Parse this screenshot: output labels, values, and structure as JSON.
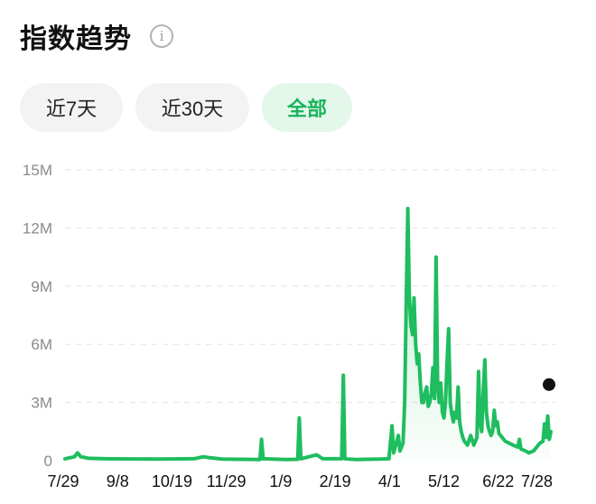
{
  "header": {
    "title": "指数趋势",
    "info_icon": "info-icon"
  },
  "tabs": [
    {
      "label": "近7天",
      "selected": false
    },
    {
      "label": "近30天",
      "selected": false
    },
    {
      "label": "全部",
      "selected": true
    }
  ],
  "colors": {
    "line": "#1fbd5f",
    "active_tab_bg": "#e3f7ea",
    "active_tab_text": "#19b35a",
    "end_dot": "#111111"
  },
  "chart_data": {
    "type": "area",
    "title": "",
    "xlabel": "",
    "ylabel": "",
    "ylim": [
      0,
      15000000
    ],
    "y_ticks": [
      0,
      3000000,
      6000000,
      9000000,
      12000000,
      15000000
    ],
    "y_tick_labels": [
      "0",
      "3M",
      "6M",
      "9M",
      "12M",
      "15M"
    ],
    "x_tick_labels": [
      "7/29",
      "9/8",
      "10/19",
      "11/29",
      "1/9",
      "2/19",
      "4/1",
      "5/12",
      "6/22",
      "7/28"
    ],
    "grid": "horizontal dashed",
    "series": [
      {
        "points": [
          [
            0,
            100000
          ],
          [
            3,
            150000
          ],
          [
            6,
            200000
          ],
          [
            8,
            400000
          ],
          [
            10,
            200000
          ],
          [
            15,
            120000
          ],
          [
            25,
            100000
          ],
          [
            41,
            90000
          ],
          [
            60,
            80000
          ],
          [
            82,
            100000
          ],
          [
            88,
            200000
          ],
          [
            92,
            150000
          ],
          [
            100,
            80000
          ],
          [
            124,
            60000
          ],
          [
            125,
            1100000
          ],
          [
            126,
            100000
          ],
          [
            140,
            60000
          ],
          [
            148,
            70000
          ],
          [
            149,
            2200000
          ],
          [
            150,
            100000
          ],
          [
            160,
            300000
          ],
          [
            164,
            100000
          ],
          [
            176,
            100000
          ],
          [
            177,
            4400000
          ],
          [
            178,
            100000
          ],
          [
            185,
            60000
          ],
          [
            200,
            80000
          ],
          [
            206,
            100000
          ],
          [
            208,
            1800000
          ],
          [
            209,
            400000
          ],
          [
            212,
            1300000
          ],
          [
            213,
            500000
          ],
          [
            215,
            900000
          ],
          [
            216,
            3000000
          ],
          [
            217,
            8000000
          ],
          [
            218,
            13000000
          ],
          [
            219,
            8500000
          ],
          [
            220,
            7000000
          ],
          [
            221,
            6500000
          ],
          [
            222,
            8400000
          ],
          [
            223,
            6000000
          ],
          [
            224,
            5000000
          ],
          [
            225,
            5500000
          ],
          [
            226,
            4000000
          ],
          [
            227,
            3000000
          ],
          [
            228,
            3000000
          ],
          [
            229,
            3500000
          ],
          [
            230,
            3800000
          ],
          [
            231,
            2800000
          ],
          [
            232,
            3000000
          ],
          [
            233,
            3500000
          ],
          [
            234,
            4800000
          ],
          [
            235,
            3200000
          ],
          [
            236,
            10500000
          ],
          [
            237,
            4000000
          ],
          [
            238,
            3000000
          ],
          [
            239,
            4000000
          ],
          [
            240,
            2500000
          ],
          [
            241,
            2200000
          ],
          [
            242,
            3000000
          ],
          [
            243,
            5100000
          ],
          [
            244,
            6800000
          ],
          [
            245,
            3000000
          ],
          [
            246,
            2400000
          ],
          [
            247,
            2000000
          ],
          [
            248,
            2500000
          ],
          [
            249,
            2200000
          ],
          [
            250,
            3800000
          ],
          [
            251,
            2000000
          ],
          [
            252,
            1500000
          ],
          [
            253,
            1200000
          ],
          [
            254,
            1000000
          ],
          [
            256,
            800000
          ],
          [
            258,
            1300000
          ],
          [
            260,
            800000
          ],
          [
            262,
            1200000
          ],
          [
            263,
            4600000
          ],
          [
            264,
            2000000
          ],
          [
            265,
            1500000
          ],
          [
            266,
            3500000
          ],
          [
            267,
            5200000
          ],
          [
            268,
            2500000
          ],
          [
            269,
            1800000
          ],
          [
            270,
            1500000
          ],
          [
            271,
            1300000
          ],
          [
            272,
            1500000
          ],
          [
            273,
            2600000
          ],
          [
            274,
            1800000
          ],
          [
            275,
            2000000
          ],
          [
            276,
            1400000
          ],
          [
            278,
            1200000
          ],
          [
            280,
            1000000
          ],
          [
            285,
            800000
          ],
          [
            288,
            700000
          ],
          [
            289,
            1100000
          ],
          [
            290,
            600000
          ],
          [
            293,
            500000
          ],
          [
            295,
            400000
          ],
          [
            298,
            500000
          ],
          [
            300,
            700000
          ],
          [
            302,
            900000
          ],
          [
            304,
            1000000
          ],
          [
            305,
            1900000
          ],
          [
            306,
            1200000
          ],
          [
            307,
            2300000
          ],
          [
            308,
            1100000
          ],
          [
            309,
            1500000
          ]
        ]
      }
    ]
  }
}
